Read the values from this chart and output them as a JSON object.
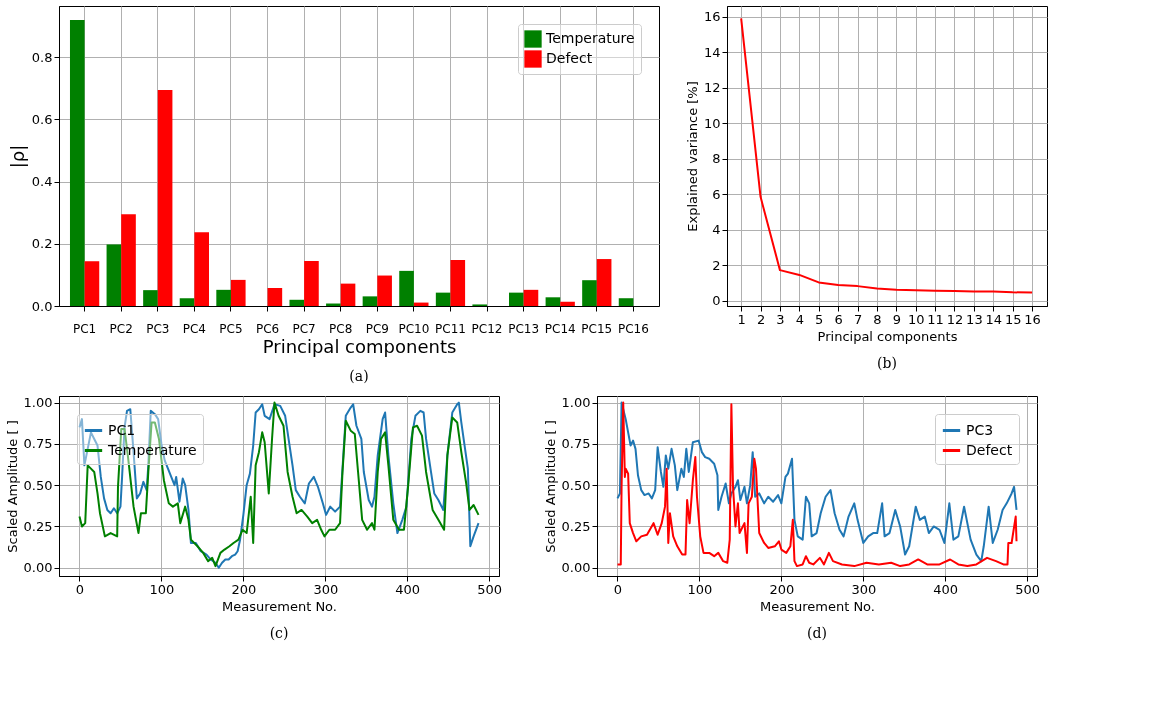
{
  "chart_data": [
    {
      "type": "bar",
      "xlabel": "Principal components",
      "ylabel": "|ρ|",
      "annotations": [
        "(a)"
      ],
      "grid": true,
      "legend": "top right",
      "categories": [
        "PC1",
        "PC2",
        "PC3",
        "PC4",
        "PC5",
        "PC6",
        "PC7",
        "PC8",
        "PC9",
        "PC10",
        "PC11",
        "PC12",
        "PC13",
        "PC14",
        "PC15",
        "PC16"
      ],
      "ylim": [
        0,
        0.965
      ],
      "yticks": [
        {
          "value": 0,
          "label": "0.0"
        },
        0.2,
        0.4,
        0.6,
        0.8
      ],
      "series": [
        {
          "name": "Temperature",
          "color": "#008000",
          "values": [
            0.92,
            0.198,
            0.051,
            0.025,
            0.052,
            0,
            0.02,
            0.008,
            0.031,
            0.113,
            0.043,
            0.005,
            0.043,
            0.028,
            0.083,
            0.025
          ]
        },
        {
          "name": "Defect",
          "color": "#ff0000",
          "values": [
            0.144,
            0.295,
            0.695,
            0.237,
            0.084,
            0.058,
            0.145,
            0.072,
            0.098,
            0.011,
            0.148,
            0,
            0.052,
            0.014,
            0.151,
            0
          ]
        }
      ]
    },
    {
      "type": "line",
      "xlabel": "Principal components",
      "ylabel": "Explained variance [%]",
      "annotations": [
        "(b)"
      ],
      "grid": true,
      "x": [
        1,
        2,
        3,
        4,
        5,
        6,
        7,
        8,
        9,
        10,
        11,
        12,
        13,
        14,
        15,
        16
      ],
      "xlim": [
        0.27,
        16.77
      ],
      "xticks": [
        1,
        2,
        3,
        4,
        5,
        6,
        7,
        8,
        9,
        10,
        11,
        12,
        13,
        14,
        15,
        16
      ],
      "ylim": [
        -0.3,
        16.6
      ],
      "yticks": [
        0,
        2,
        4,
        6,
        8,
        10,
        12,
        14,
        16
      ],
      "series": [
        {
          "color": "#ff0000",
          "values": [
            15.9,
            5.85,
            1.72,
            1.45,
            1.03,
            0.88,
            0.82,
            0.68,
            0.62,
            0.59,
            0.56,
            0.54,
            0.52,
            0.51,
            0.47,
            0.46
          ]
        }
      ]
    },
    {
      "type": "line",
      "xlabel": "Measurement No.",
      "ylabel": "Scaled Amplitude [ ]",
      "annotations": [
        "(c)"
      ],
      "grid": true,
      "legend": "top left",
      "xlim": [
        -25,
        512
      ],
      "xticks": [
        0,
        100,
        200,
        300,
        400,
        500
      ],
      "ylim": [
        -0.05,
        1.04
      ],
      "yticks": [
        {
          "value": 0,
          "label": "0.00"
        },
        {
          "value": 0.25,
          "label": "0.25"
        },
        {
          "value": 0.5,
          "label": "0.50"
        },
        {
          "value": 0.75,
          "label": "0.75"
        },
        {
          "value": 1,
          "label": "1.00"
        }
      ],
      "series": [
        {
          "name": "PC1",
          "color": "#1f77b4",
          "x": [
            0,
            3,
            6,
            10,
            14,
            18,
            22,
            26,
            30,
            34,
            38,
            42,
            46,
            50,
            52,
            55,
            58,
            62,
            66,
            70,
            74,
            78,
            82,
            84,
            87,
            92,
            96,
            100,
            104,
            108,
            112,
            116,
            118,
            122,
            126,
            129,
            133,
            136,
            142,
            148,
            155,
            160,
            166,
            170,
            174,
            178,
            182,
            186,
            190,
            193,
            196,
            200,
            204,
            208,
            212,
            215,
            219,
            223,
            226,
            232,
            238,
            245,
            251,
            254,
            260,
            264,
            269,
            275,
            280,
            286,
            291,
            297,
            301,
            306,
            312,
            318,
            322,
            325,
            331,
            334,
            338,
            344,
            347,
            353,
            357,
            360,
            364,
            370,
            373,
            377,
            383,
            388,
            394,
            399,
            405,
            410,
            416,
            420,
            423,
            429,
            433,
            438,
            444,
            449,
            455,
            461,
            463,
            466,
            470,
            474,
            477,
            481,
            487
          ],
          "values": [
            0.85,
            0.9,
            0.62,
            0.72,
            0.82,
            0.78,
            0.74,
            0.55,
            0.42,
            0.35,
            0.33,
            0.36,
            0.33,
            0.37,
            0.55,
            0.85,
            0.95,
            0.96,
            0.7,
            0.42,
            0.45,
            0.52,
            0.47,
            0.62,
            0.95,
            0.93,
            0.9,
            0.75,
            0.65,
            0.6,
            0.55,
            0.5,
            0.55,
            0.4,
            0.54,
            0.5,
            0.35,
            0.15,
            0.15,
            0.1,
            0.08,
            0.05,
            0.03,
            0,
            0.03,
            0.05,
            0.05,
            0.07,
            0.08,
            0.1,
            0.17,
            0.32,
            0.5,
            0.57,
            0.74,
            0.94,
            0.96,
            0.99,
            0.92,
            0.9,
            0.99,
            0.98,
            0.92,
            0.82,
            0.62,
            0.47,
            0.43,
            0.39,
            0.51,
            0.55,
            0.49,
            0.39,
            0.32,
            0.37,
            0.34,
            0.37,
            0.68,
            0.92,
            0.97,
            0.99,
            0.86,
            0.78,
            0.58,
            0.41,
            0.37,
            0.43,
            0.68,
            0.9,
            0.94,
            0.68,
            0.39,
            0.21,
            0.29,
            0.37,
            0.78,
            0.92,
            0.95,
            0.94,
            0.78,
            0.58,
            0.45,
            0.41,
            0.35,
            0.68,
            0.94,
            0.99,
            1.0,
            0.88,
            0.74,
            0.6,
            0.13,
            0.19,
            0.27
          ]
        },
        {
          "name": "Temperature",
          "color": "#008000",
          "x": [
            0,
            3,
            7,
            10,
            14,
            18,
            22,
            25,
            31,
            38,
            46,
            47,
            51,
            55,
            59,
            66,
            72,
            75,
            81,
            84,
            88,
            92,
            97,
            103,
            109,
            114,
            120,
            123,
            129,
            133,
            136,
            144,
            151,
            157,
            162,
            166,
            172,
            177,
            183,
            188,
            194,
            199,
            204,
            209,
            212,
            215,
            219,
            223,
            226,
            231,
            235,
            238,
            243,
            249,
            254,
            260,
            265,
            271,
            278,
            284,
            290,
            295,
            299,
            305,
            312,
            318,
            321,
            325,
            331,
            336,
            340,
            345,
            351,
            357,
            360,
            364,
            368,
            373,
            377,
            383,
            390,
            396,
            401,
            407,
            412,
            418,
            423,
            431,
            438,
            445,
            449,
            455,
            461,
            466,
            472,
            476,
            481,
            487
          ],
          "values": [
            0.31,
            0.25,
            0.27,
            0.62,
            0.6,
            0.58,
            0.45,
            0.33,
            0.19,
            0.21,
            0.19,
            0.49,
            0.84,
            0.84,
            0.68,
            0.37,
            0.21,
            0.33,
            0.33,
            0.58,
            0.88,
            0.88,
            0.78,
            0.53,
            0.39,
            0.37,
            0.39,
            0.27,
            0.37,
            0.29,
            0.17,
            0.13,
            0.09,
            0.04,
            0.06,
            0.01,
            0.09,
            0.11,
            0.13,
            0.15,
            0.17,
            0.23,
            0.21,
            0.43,
            0.15,
            0.62,
            0.7,
            0.82,
            0.76,
            0.45,
            0.78,
            1.0,
            0.92,
            0.86,
            0.58,
            0.43,
            0.33,
            0.35,
            0.31,
            0.27,
            0.29,
            0.23,
            0.19,
            0.23,
            0.23,
            0.27,
            0.58,
            0.89,
            0.83,
            0.81,
            0.58,
            0.29,
            0.23,
            0.27,
            0.23,
            0.58,
            0.78,
            0.82,
            0.62,
            0.29,
            0.23,
            0.23,
            0.49,
            0.85,
            0.86,
            0.8,
            0.58,
            0.35,
            0.29,
            0.23,
            0.68,
            0.91,
            0.88,
            0.7,
            0.51,
            0.35,
            0.38,
            0.32
          ]
        }
      ]
    },
    {
      "type": "line",
      "xlabel": "Measurement No.",
      "ylabel": "Scaled Amplitude [ ]",
      "annotations": [
        "(d)"
      ],
      "grid": true,
      "legend": "top right",
      "xlim": [
        -25,
        512
      ],
      "xticks": [
        0,
        100,
        200,
        300,
        400,
        500
      ],
      "ylim": [
        -0.05,
        1.04
      ],
      "yticks": [
        {
          "value": 0,
          "label": "0.00"
        },
        {
          "value": 0.25,
          "label": "0.25"
        },
        {
          "value": 0.5,
          "label": "0.50"
        },
        {
          "value": 0.75,
          "label": "0.75"
        },
        {
          "value": 1,
          "label": "1.00"
        }
      ],
      "series": [
        {
          "name": "PC3",
          "color": "#1f77b4",
          "x": [
            0,
            3,
            5,
            10,
            13,
            16,
            19,
            22,
            25,
            29,
            33,
            38,
            42,
            46,
            49,
            53,
            56,
            59,
            62,
            66,
            70,
            73,
            78,
            81,
            84,
            87,
            92,
            99,
            103,
            107,
            112,
            118,
            122,
            123,
            127,
            132,
            136,
            139,
            144,
            147,
            150,
            155,
            158,
            162,
            165,
            168,
            173,
            179,
            184,
            190,
            196,
            200,
            205,
            208,
            213,
            216,
            220,
            226,
            230,
            234,
            237,
            243,
            248,
            254,
            260,
            265,
            271,
            276,
            282,
            289,
            293,
            300,
            306,
            312,
            317,
            323,
            326,
            332,
            339,
            345,
            351,
            356,
            364,
            369,
            375,
            380,
            386,
            393,
            399,
            405,
            410,
            416,
            423,
            431,
            438,
            444,
            447,
            453,
            458,
            464,
            470,
            475,
            481,
            484,
            487
          ],
          "values": [
            0.42,
            0.45,
            1.0,
            0.9,
            0.82,
            0.74,
            0.77,
            0.72,
            0.56,
            0.47,
            0.44,
            0.45,
            0.42,
            0.47,
            0.73,
            0.58,
            0.49,
            0.68,
            0.6,
            0.72,
            0.62,
            0.47,
            0.6,
            0.55,
            0.72,
            0.58,
            0.76,
            0.77,
            0.7,
            0.67,
            0.66,
            0.63,
            0.56,
            0.35,
            0.43,
            0.51,
            0.39,
            0.45,
            0.49,
            0.53,
            0.41,
            0.49,
            0.39,
            0.5,
            0.7,
            0.43,
            0.45,
            0.39,
            0.43,
            0.4,
            0.44,
            0.39,
            0.55,
            0.57,
            0.66,
            0.29,
            0.19,
            0.17,
            0.43,
            0.39,
            0.19,
            0.21,
            0.33,
            0.43,
            0.47,
            0.33,
            0.23,
            0.19,
            0.31,
            0.39,
            0.29,
            0.15,
            0.19,
            0.21,
            0.21,
            0.39,
            0.19,
            0.21,
            0.35,
            0.25,
            0.08,
            0.13,
            0.37,
            0.29,
            0.31,
            0.21,
            0.25,
            0.23,
            0.15,
            0.39,
            0.17,
            0.19,
            0.37,
            0.17,
            0.08,
            0.04,
            0.13,
            0.37,
            0.15,
            0.23,
            0.35,
            0.39,
            0.45,
            0.49,
            0.35
          ]
        },
        {
          "name": "Defect",
          "color": "#ff0000",
          "x": [
            0,
            4,
            5,
            7,
            9,
            10,
            13,
            15,
            19,
            23,
            29,
            36,
            44,
            49,
            54,
            58,
            60,
            62,
            64,
            68,
            73,
            79,
            83,
            85,
            88,
            92,
            95,
            97,
            101,
            105,
            112,
            118,
            123,
            129,
            134,
            137,
            139,
            141,
            144,
            147,
            149,
            155,
            158,
            160,
            164,
            167,
            169,
            173,
            179,
            184,
            192,
            197,
            200,
            206,
            211,
            214,
            216,
            219,
            226,
            230,
            234,
            239,
            247,
            252,
            258,
            263,
            274,
            289,
            304,
            319,
            334,
            345,
            356,
            367,
            378,
            393,
            406,
            416,
            427,
            438,
            451,
            462,
            471,
            476,
            477,
            481,
            486,
            487
          ],
          "values": [
            0.02,
            0.02,
            0.49,
            1.0,
            0.55,
            0.6,
            0.57,
            0.27,
            0.21,
            0.16,
            0.19,
            0.2,
            0.27,
            0.2,
            0.27,
            0.37,
            0.6,
            0.15,
            0.33,
            0.19,
            0.13,
            0.08,
            0.08,
            0.41,
            0.27,
            0.53,
            0.67,
            0.43,
            0.19,
            0.09,
            0.09,
            0.07,
            0.09,
            0.04,
            0.03,
            0.17,
            0.99,
            0.49,
            0.25,
            0.39,
            0.21,
            0.27,
            0.09,
            0.39,
            0.43,
            0.66,
            0.6,
            0.21,
            0.15,
            0.12,
            0.13,
            0.16,
            0.11,
            0.09,
            0.13,
            0.29,
            0.04,
            0.01,
            0.02,
            0.07,
            0.03,
            0.02,
            0.06,
            0.02,
            0.09,
            0.04,
            0.02,
            0.01,
            0.03,
            0.02,
            0.03,
            0.01,
            0.02,
            0.05,
            0.02,
            0.02,
            0.05,
            0.02,
            0.01,
            0.02,
            0.06,
            0.04,
            0.02,
            0.02,
            0.15,
            0.15,
            0.31,
            0.16
          ]
        }
      ]
    }
  ]
}
